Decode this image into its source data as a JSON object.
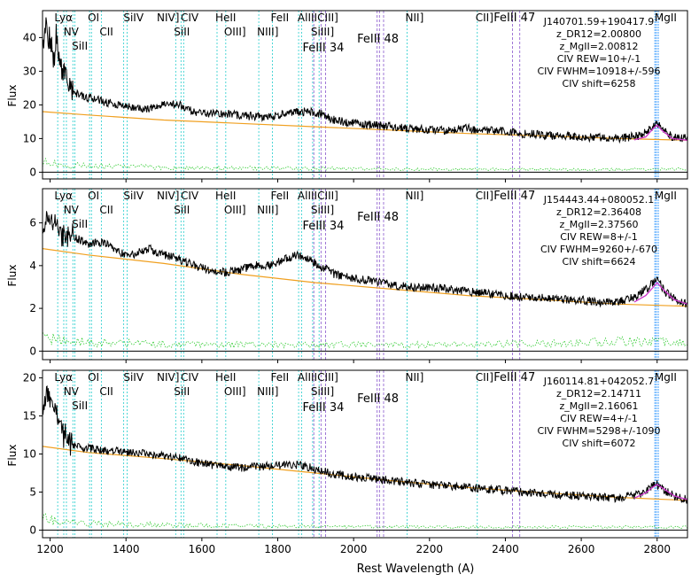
{
  "figure": {
    "xlabel": "Rest Wavelength (A)",
    "ylabel": "Flux"
  },
  "style": {
    "spectrum_color": "#000000",
    "continuum_color": "#f0a020",
    "error_color": "#33cc33",
    "fit_color": "#cc33cc",
    "fit_component_color": "#3399ff",
    "line_marker_color": "#22cccc",
    "feii_marker_color": "#8855cc",
    "zero_line_color": "#000000"
  },
  "line_markers": [
    {
      "label": "Lyα",
      "x": 1216,
      "tier": "top"
    },
    {
      "label": "NV",
      "x": 1240,
      "tier": "mid"
    },
    {
      "label": "SiII",
      "x": 1262,
      "tier": "low"
    },
    {
      "label": "OI",
      "x": 1304,
      "tier": "top"
    },
    {
      "label": "CII",
      "x": 1335,
      "tier": "mid"
    },
    {
      "label": "SiIV",
      "x": 1398,
      "tier": "top"
    },
    {
      "label": "NIV]",
      "x": 1486,
      "tier": "top"
    },
    {
      "label": "SiII",
      "x": 1531,
      "tier": "mid"
    },
    {
      "label": "CIV",
      "x": 1549,
      "tier": "top"
    },
    {
      "label": "HeII",
      "x": 1640,
      "tier": "top"
    },
    {
      "label": "OIII]",
      "x": 1663,
      "tier": "mid"
    },
    {
      "label": "NIII]",
      "x": 1750,
      "tier": "mid"
    },
    {
      "label": "FeII",
      "x": 1786,
      "tier": "top"
    },
    {
      "label": "AlIII",
      "x": 1857,
      "tier": "top"
    },
    {
      "label": "SiIII]",
      "x": 1892,
      "tier": "mid"
    },
    {
      "label": "CIII]",
      "x": 1909,
      "tier": "top"
    },
    {
      "label": "NII]",
      "x": 2141,
      "tier": "top"
    },
    {
      "label": "CII]",
      "x": 2326,
      "tier": "top"
    },
    {
      "label": "MgII",
      "x": 2798,
      "tier": "top"
    }
  ],
  "feii_labels": [
    {
      "label": "FeIII 34",
      "x": 1926,
      "tier": "feii-low"
    },
    {
      "label": "FeIII 48",
      "x": 2070,
      "tier": "feii-mid"
    },
    {
      "label": "FeIII 47",
      "x": 2430,
      "tier": "top"
    }
  ],
  "feii_lines": [
    1895,
    1914,
    1926,
    2062,
    2068,
    2079,
    2419,
    2438
  ],
  "cyan_extra_lines": [
    1220,
    1236,
    1243,
    1260,
    1265,
    1304,
    1309,
    1335,
    1394,
    1403,
    1531,
    1545,
    1552,
    1640,
    1663,
    1750,
    1786,
    1855,
    1863,
    1892,
    1909,
    2141,
    2326
  ],
  "chart_data": [
    {
      "type": "line",
      "object": "J140701.59+190417.9",
      "annotations": [
        "J140701.59+190417.9",
        "z_DR12=2.00800",
        "z_MgII=2.00812",
        "CIV REW=10+/-1",
        "CIV FWHM=10918+/-596",
        "CIV shift=6258"
      ],
      "xlim": [
        1180,
        2880
      ],
      "ylim": [
        -2,
        48
      ],
      "yticks": [
        0,
        10,
        20,
        30,
        40
      ],
      "xticks": [
        1200,
        1400,
        1600,
        1800,
        2000,
        2200,
        2400,
        2600,
        2800
      ],
      "spectrum": [
        [
          1180,
          35
        ],
        [
          1190,
          44
        ],
        [
          1200,
          38
        ],
        [
          1210,
          33
        ],
        [
          1216,
          40
        ],
        [
          1225,
          32
        ],
        [
          1235,
          30
        ],
        [
          1245,
          27
        ],
        [
          1260,
          24
        ],
        [
          1280,
          23
        ],
        [
          1300,
          22
        ],
        [
          1320,
          22
        ],
        [
          1340,
          21
        ],
        [
          1380,
          20
        ],
        [
          1420,
          19
        ],
        [
          1460,
          19
        ],
        [
          1500,
          20.5
        ],
        [
          1540,
          20
        ],
        [
          1580,
          18
        ],
        [
          1620,
          17.5
        ],
        [
          1660,
          17.5
        ],
        [
          1700,
          17
        ],
        [
          1740,
          16.5
        ],
        [
          1780,
          16.5
        ],
        [
          1800,
          17
        ],
        [
          1840,
          18
        ],
        [
          1880,
          18
        ],
        [
          1910,
          17.5
        ],
        [
          1950,
          15.5
        ],
        [
          2000,
          14.5
        ],
        [
          2050,
          14
        ],
        [
          2100,
          13.5
        ],
        [
          2150,
          13
        ],
        [
          2200,
          12.5
        ],
        [
          2250,
          12.5
        ],
        [
          2300,
          13
        ],
        [
          2350,
          12.5
        ],
        [
          2400,
          12
        ],
        [
          2450,
          11.5
        ],
        [
          2500,
          11
        ],
        [
          2550,
          10.8
        ],
        [
          2600,
          10.5
        ],
        [
          2650,
          10.2
        ],
        [
          2700,
          10
        ],
        [
          2760,
          11
        ],
        [
          2790,
          13.5
        ],
        [
          2800,
          14.5
        ],
        [
          2815,
          12.5
        ],
        [
          2840,
          10.5
        ],
        [
          2880,
          10
        ]
      ],
      "continuum": [
        [
          1180,
          18
        ],
        [
          1300,
          17
        ],
        [
          1500,
          15.5
        ],
        [
          1700,
          14.5
        ],
        [
          1900,
          13.5
        ],
        [
          2100,
          12.5
        ],
        [
          2300,
          11.5
        ],
        [
          2500,
          10.8
        ],
        [
          2700,
          10
        ],
        [
          2880,
          9.5
        ]
      ],
      "mgii_fit": [
        [
          2740,
          9.6
        ],
        [
          2770,
          10.5
        ],
        [
          2790,
          13
        ],
        [
          2800,
          14
        ],
        [
          2812,
          12.5
        ],
        [
          2840,
          10
        ],
        [
          2880,
          9.5
        ]
      ],
      "error": [
        [
          1180,
          3
        ],
        [
          1250,
          2
        ],
        [
          1400,
          1.6
        ],
        [
          1600,
          1.3
        ],
        [
          1900,
          1.1
        ],
        [
          2200,
          0.9
        ],
        [
          2500,
          0.8
        ],
        [
          2880,
          0.9
        ]
      ]
    },
    {
      "type": "line",
      "object": "J154443.44+080052.1",
      "annotations": [
        "J154443.44+080052.1",
        "z_DR12=2.36408",
        "z_MgII=2.37560",
        "CIV REW=8+/-1",
        "CIV FWHM=9260+/-670",
        "CIV shift=6624"
      ],
      "xlim": [
        1180,
        2880
      ],
      "ylim": [
        -0.4,
        7.6
      ],
      "yticks": [
        0,
        2,
        4,
        6
      ],
      "xticks": [
        1200,
        1400,
        1600,
        1800,
        2000,
        2200,
        2400,
        2600,
        2800
      ],
      "spectrum": [
        [
          1180,
          5.8
        ],
        [
          1200,
          6.3
        ],
        [
          1216,
          6.1
        ],
        [
          1230,
          5.3
        ],
        [
          1250,
          5.4
        ],
        [
          1280,
          5.2
        ],
        [
          1300,
          5.0
        ],
        [
          1340,
          5.1
        ],
        [
          1380,
          4.6
        ],
        [
          1420,
          4.5
        ],
        [
          1460,
          4.8
        ],
        [
          1500,
          4.5
        ],
        [
          1540,
          4.3
        ],
        [
          1580,
          4.0
        ],
        [
          1620,
          3.8
        ],
        [
          1660,
          3.7
        ],
        [
          1700,
          3.8
        ],
        [
          1740,
          4.0
        ],
        [
          1780,
          4.0
        ],
        [
          1820,
          4.3
        ],
        [
          1850,
          4.5
        ],
        [
          1880,
          4.3
        ],
        [
          1910,
          4.0
        ],
        [
          1950,
          3.6
        ],
        [
          2000,
          3.4
        ],
        [
          2050,
          3.3
        ],
        [
          2100,
          3.1
        ],
        [
          2150,
          3.0
        ],
        [
          2200,
          3.0
        ],
        [
          2250,
          2.9
        ],
        [
          2300,
          2.8
        ],
        [
          2350,
          2.7
        ],
        [
          2400,
          2.6
        ],
        [
          2450,
          2.5
        ],
        [
          2500,
          2.5
        ],
        [
          2550,
          2.4
        ],
        [
          2600,
          2.4
        ],
        [
          2650,
          2.3
        ],
        [
          2700,
          2.3
        ],
        [
          2750,
          2.6
        ],
        [
          2790,
          3.2
        ],
        [
          2800,
          3.4
        ],
        [
          2820,
          2.8
        ],
        [
          2850,
          2.4
        ],
        [
          2880,
          2.2
        ]
      ],
      "continuum": [
        [
          1180,
          4.8
        ],
        [
          1300,
          4.5
        ],
        [
          1500,
          4.1
        ],
        [
          1700,
          3.6
        ],
        [
          1900,
          3.2
        ],
        [
          2100,
          2.9
        ],
        [
          2300,
          2.6
        ],
        [
          2500,
          2.4
        ],
        [
          2700,
          2.2
        ],
        [
          2880,
          2.1
        ]
      ],
      "mgii_fit": [
        [
          2740,
          2.3
        ],
        [
          2770,
          2.6
        ],
        [
          2790,
          3.0
        ],
        [
          2800,
          3.2
        ],
        [
          2815,
          2.9
        ],
        [
          2845,
          2.4
        ],
        [
          2880,
          2.2
        ]
      ],
      "error": [
        [
          1180,
          0.6
        ],
        [
          1300,
          0.4
        ],
        [
          1600,
          0.3
        ],
        [
          1900,
          0.3
        ],
        [
          2200,
          0.3
        ],
        [
          2500,
          0.35
        ],
        [
          2700,
          0.45
        ],
        [
          2880,
          0.4
        ]
      ]
    },
    {
      "type": "line",
      "object": "J160114.81+042052.7",
      "annotations": [
        "J160114.81+042052.7",
        "z_DR12=2.14711",
        "z_MgII=2.16061",
        "CIV REW=4+/-1",
        "CIV FWHM=5298+/-1090",
        "CIV shift=6072"
      ],
      "xlim": [
        1180,
        2880
      ],
      "ylim": [
        -1,
        21
      ],
      "yticks": [
        0,
        5,
        10,
        15,
        20
      ],
      "xticks": [
        1200,
        1400,
        1600,
        1800,
        2000,
        2200,
        2400,
        2600,
        2800
      ],
      "spectrum": [
        [
          1180,
          16
        ],
        [
          1195,
          18.5
        ],
        [
          1205,
          17
        ],
        [
          1216,
          15.5
        ],
        [
          1230,
          13
        ],
        [
          1245,
          12
        ],
        [
          1260,
          11
        ],
        [
          1280,
          10.8
        ],
        [
          1300,
          10.8
        ],
        [
          1340,
          10.5
        ],
        [
          1380,
          10.3
        ],
        [
          1420,
          10.2
        ],
        [
          1460,
          10
        ],
        [
          1500,
          9.8
        ],
        [
          1540,
          9.6
        ],
        [
          1580,
          9.0
        ],
        [
          1620,
          8.6
        ],
        [
          1660,
          8.4
        ],
        [
          1700,
          8.2
        ],
        [
          1740,
          8.3
        ],
        [
          1780,
          8.4
        ],
        [
          1820,
          8.5
        ],
        [
          1860,
          8.6
        ],
        [
          1900,
          8.0
        ],
        [
          1950,
          7.3
        ],
        [
          2000,
          7.0
        ],
        [
          2050,
          6.8
        ],
        [
          2100,
          6.5
        ],
        [
          2150,
          6.2
        ],
        [
          2200,
          6.0
        ],
        [
          2250,
          5.8
        ],
        [
          2300,
          5.6
        ],
        [
          2350,
          5.4
        ],
        [
          2400,
          5.2
        ],
        [
          2450,
          5.0
        ],
        [
          2500,
          4.8
        ],
        [
          2550,
          4.6
        ],
        [
          2600,
          4.5
        ],
        [
          2650,
          4.3
        ],
        [
          2700,
          4.2
        ],
        [
          2760,
          4.8
        ],
        [
          2790,
          5.8
        ],
        [
          2800,
          6.0
        ],
        [
          2820,
          5.2
        ],
        [
          2850,
          4.3
        ],
        [
          2880,
          4.0
        ]
      ],
      "continuum": [
        [
          1180,
          11
        ],
        [
          1300,
          10.2
        ],
        [
          1500,
          9.4
        ],
        [
          1700,
          8.5
        ],
        [
          1900,
          7.5
        ],
        [
          2100,
          6.5
        ],
        [
          2300,
          5.6
        ],
        [
          2500,
          4.9
        ],
        [
          2700,
          4.3
        ],
        [
          2880,
          3.9
        ]
      ],
      "mgii_fit": [
        [
          2740,
          4.2
        ],
        [
          2770,
          4.9
        ],
        [
          2790,
          5.7
        ],
        [
          2800,
          6.0
        ],
        [
          2815,
          5.5
        ],
        [
          2845,
          4.5
        ],
        [
          2880,
          4.0
        ]
      ],
      "error": [
        [
          1180,
          1.5
        ],
        [
          1250,
          1.0
        ],
        [
          1400,
          0.8
        ],
        [
          1600,
          0.6
        ],
        [
          1900,
          0.5
        ],
        [
          2200,
          0.4
        ],
        [
          2500,
          0.4
        ],
        [
          2880,
          0.4
        ]
      ]
    }
  ]
}
